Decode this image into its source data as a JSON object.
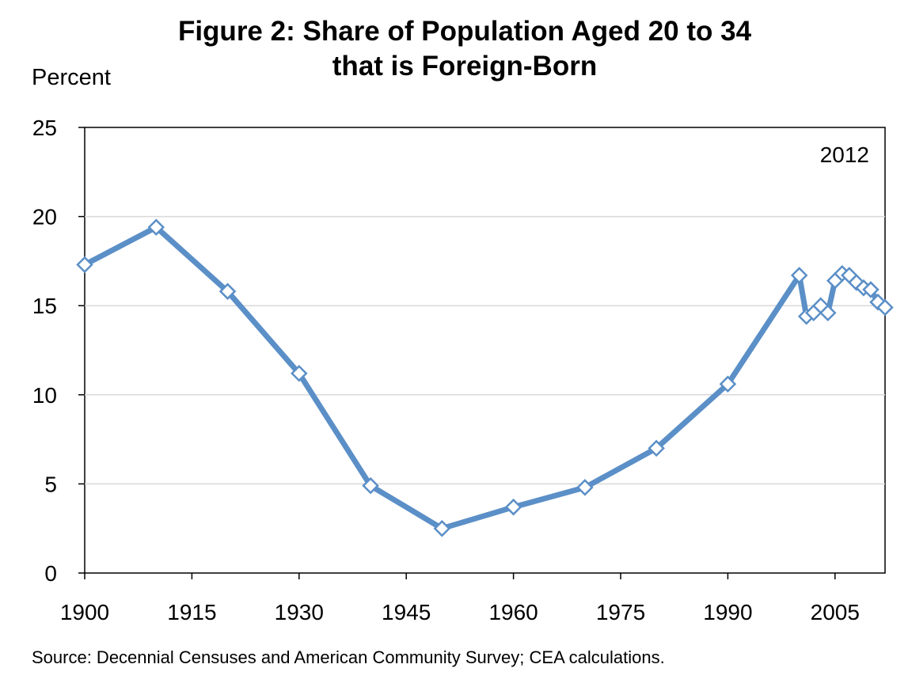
{
  "title_line1": "Figure 2: Share of Population Aged 20 to 34",
  "title_line2": "that is Foreign-Born",
  "source": "Source: Decennial Censuses and American Community Survey; CEA calculations.",
  "chart_data": {
    "type": "line",
    "title": "Figure 2: Share of Population Aged 20 to 34 that is Foreign-Born",
    "xlabel": "",
    "ylabel": "Percent",
    "xlim": [
      1900,
      2012
    ],
    "ylim": [
      0,
      25
    ],
    "x_ticks": [
      "1900",
      "1915",
      "1930",
      "1945",
      "1960",
      "1975",
      "1990",
      "2005"
    ],
    "y_ticks": [
      "0",
      "5",
      "10",
      "15",
      "20",
      "25"
    ],
    "grid": "horizontal",
    "legend": "none",
    "annotation": "2012",
    "line_color": "#5B8FC7",
    "marker": "diamond",
    "x": [
      1900,
      1910,
      1920,
      1930,
      1940,
      1950,
      1960,
      1970,
      1980,
      1990,
      2000,
      2001,
      2002,
      2003,
      2004,
      2005,
      2006,
      2007,
      2008,
      2009,
      2010,
      2011,
      2012
    ],
    "values": [
      17.3,
      19.4,
      15.8,
      11.2,
      4.9,
      2.5,
      3.7,
      4.8,
      7.0,
      10.6,
      16.7,
      14.4,
      14.6,
      15.0,
      14.6,
      16.4,
      16.8,
      16.7,
      16.3,
      16.0,
      15.9,
      15.2,
      14.9
    ]
  }
}
